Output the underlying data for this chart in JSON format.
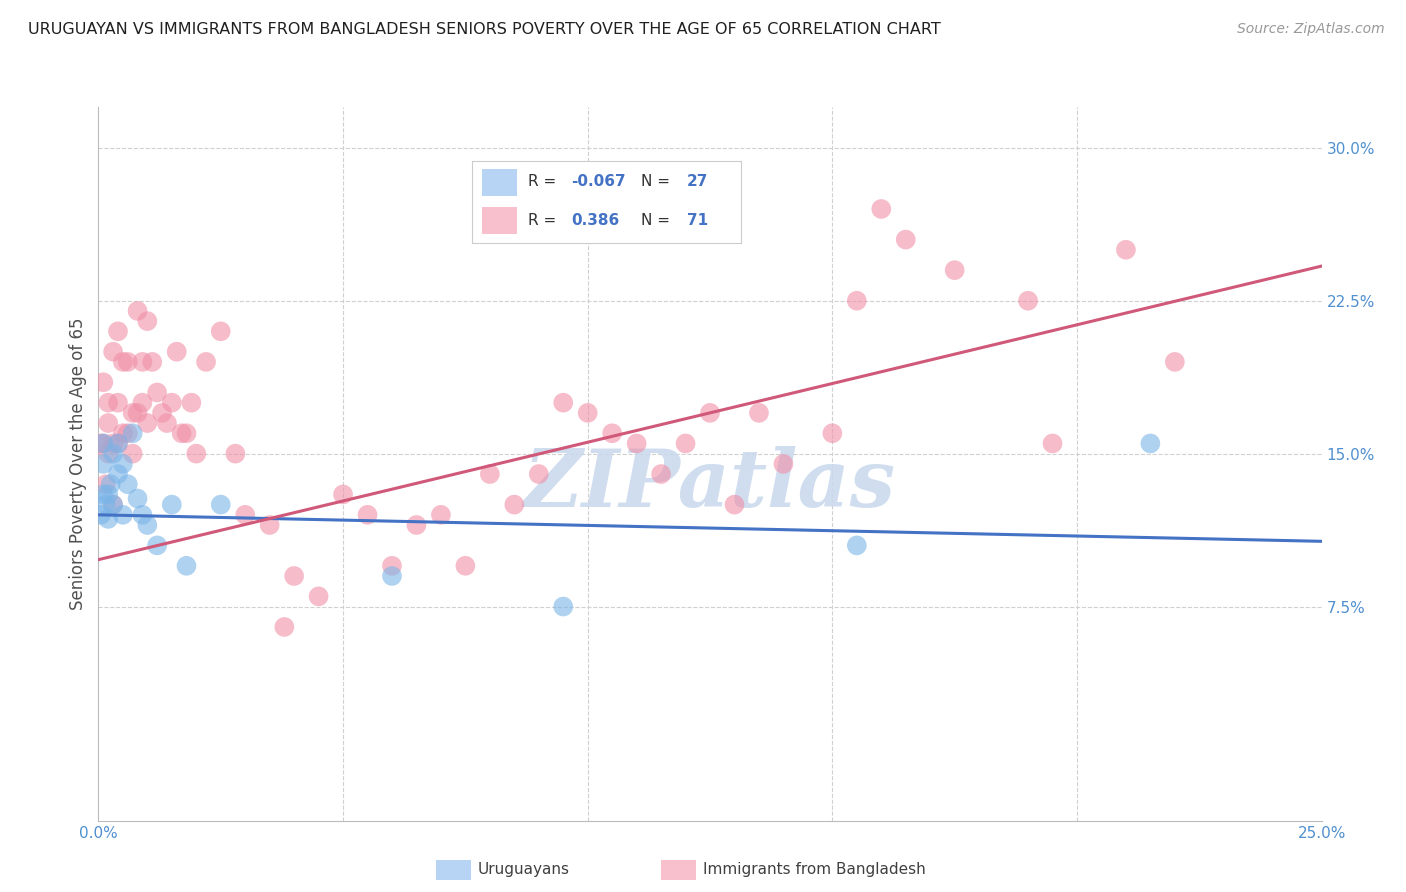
{
  "title": "URUGUAYAN VS IMMIGRANTS FROM BANGLADESH SENIORS POVERTY OVER THE AGE OF 65 CORRELATION CHART",
  "source": "Source: ZipAtlas.com",
  "ylabel": "Seniors Poverty Over the Age of 65",
  "xlim": [
    0.0,
    0.25
  ],
  "ylim": [
    -0.03,
    0.32
  ],
  "xticks": [
    0.0,
    0.05,
    0.1,
    0.15,
    0.2,
    0.25
  ],
  "xticklabels": [
    "0.0%",
    "",
    "",
    "",
    "",
    "25.0%"
  ],
  "yticks": [
    0.075,
    0.15,
    0.225,
    0.3
  ],
  "yticklabels": [
    "7.5%",
    "15.0%",
    "22.5%",
    "30.0%"
  ],
  "blue_color": "#7ab4e8",
  "pink_color": "#f090a8",
  "blue_line_color": "#4472c4",
  "pink_line_color": "#d05878",
  "legend_blue_fill": "#b8d4f4",
  "legend_pink_fill": "#f8c0cc",
  "background_color": "#ffffff",
  "grid_color": "#d0d0d0",
  "title_color": "#202020",
  "axis_label_color": "#505050",
  "tick_label_color": "#5090d0",
  "watermark_color": "#c8d8ec",
  "blue_line_x0": 0.0,
  "blue_line_y0": 0.12,
  "blue_line_x1": 0.25,
  "blue_line_y1": 0.107,
  "pink_line_x0": 0.0,
  "pink_line_y0": 0.098,
  "pink_line_x1": 0.25,
  "pink_line_y1": 0.242,
  "uruguayans_x": [
    0.0005,
    0.001,
    0.001,
    0.001,
    0.0015,
    0.002,
    0.002,
    0.0025,
    0.003,
    0.003,
    0.004,
    0.004,
    0.005,
    0.005,
    0.006,
    0.007,
    0.008,
    0.009,
    0.01,
    0.012,
    0.015,
    0.018,
    0.025,
    0.06,
    0.095,
    0.155,
    0.215
  ],
  "uruguayans_y": [
    0.12,
    0.155,
    0.13,
    0.145,
    0.125,
    0.13,
    0.118,
    0.135,
    0.125,
    0.15,
    0.155,
    0.14,
    0.12,
    0.145,
    0.135,
    0.16,
    0.128,
    0.12,
    0.115,
    0.105,
    0.125,
    0.095,
    0.125,
    0.09,
    0.075,
    0.105,
    0.155
  ],
  "bangladesh_x": [
    0.0005,
    0.001,
    0.001,
    0.0015,
    0.002,
    0.002,
    0.002,
    0.003,
    0.003,
    0.003,
    0.004,
    0.004,
    0.004,
    0.005,
    0.005,
    0.006,
    0.006,
    0.007,
    0.007,
    0.008,
    0.008,
    0.009,
    0.009,
    0.01,
    0.01,
    0.011,
    0.012,
    0.013,
    0.014,
    0.015,
    0.016,
    0.017,
    0.018,
    0.019,
    0.02,
    0.022,
    0.025,
    0.028,
    0.03,
    0.035,
    0.038,
    0.04,
    0.045,
    0.05,
    0.055,
    0.06,
    0.065,
    0.07,
    0.075,
    0.08,
    0.085,
    0.09,
    0.095,
    0.1,
    0.105,
    0.11,
    0.115,
    0.12,
    0.125,
    0.13,
    0.135,
    0.14,
    0.15,
    0.155,
    0.16,
    0.165,
    0.175,
    0.19,
    0.195,
    0.21,
    0.22
  ],
  "bangladesh_y": [
    0.155,
    0.155,
    0.185,
    0.135,
    0.15,
    0.165,
    0.175,
    0.125,
    0.155,
    0.2,
    0.175,
    0.155,
    0.21,
    0.195,
    0.16,
    0.16,
    0.195,
    0.17,
    0.15,
    0.17,
    0.22,
    0.195,
    0.175,
    0.165,
    0.215,
    0.195,
    0.18,
    0.17,
    0.165,
    0.175,
    0.2,
    0.16,
    0.16,
    0.175,
    0.15,
    0.195,
    0.21,
    0.15,
    0.12,
    0.115,
    0.065,
    0.09,
    0.08,
    0.13,
    0.12,
    0.095,
    0.115,
    0.12,
    0.095,
    0.14,
    0.125,
    0.14,
    0.175,
    0.17,
    0.16,
    0.155,
    0.14,
    0.155,
    0.17,
    0.125,
    0.17,
    0.145,
    0.16,
    0.225,
    0.27,
    0.255,
    0.24,
    0.225,
    0.155,
    0.25,
    0.195
  ]
}
